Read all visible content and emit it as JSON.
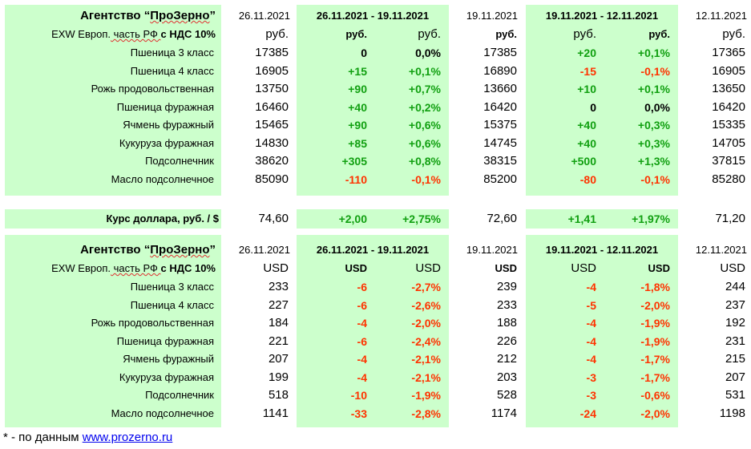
{
  "section_rub": {
    "brand_prefix": "Агентство “",
    "brand_name": "ПроЗерно",
    "brand_suffix": "”",
    "date_cur": "26.11.2021",
    "period1": "26.11.2021 - 19.11.2021",
    "date_mid": "19.11.2021",
    "period2": "19.11.2021 - 12.11.2021",
    "date_prev": "12.11.2021",
    "sub_label_a": "EXW Европ.",
    "sub_label_b": " часть РФ ",
    "sub_label_c": "с НДС 10%",
    "unit": "руб.",
    "unit_delta": "руб.",
    "unit_pct": "руб.",
    "unit_mid": "руб.",
    "unit_delta2": "руб.",
    "unit_pct2": "руб.",
    "unit_prev": "руб.",
    "rows": [
      {
        "name": "Пшеница 3 класс",
        "cur": "17385",
        "d1": "0",
        "p1": "0,0%",
        "mid": "17385",
        "d2": "+20",
        "p2": "+0,1%",
        "prev": "17365"
      },
      {
        "name": "Пшеница 4 класс",
        "cur": "16905",
        "d1": "+15",
        "p1": "+0,1%",
        "mid": "16890",
        "d2": "-15",
        "p2": "-0,1%",
        "prev": "16905"
      },
      {
        "name": "Рожь продовольственная",
        "cur": "13750",
        "d1": "+90",
        "p1": "+0,7%",
        "mid": "13660",
        "d2": "+10",
        "p2": "+0,1%",
        "prev": "13650"
      },
      {
        "name": "Пшеница фуражная",
        "cur": "16460",
        "d1": "+40",
        "p1": "+0,2%",
        "mid": "16420",
        "d2": "0",
        "p2": "0,0%",
        "prev": "16420"
      },
      {
        "name": "Ячмень фуражный",
        "cur": "15465",
        "d1": "+90",
        "p1": "+0,6%",
        "mid": "15375",
        "d2": "+40",
        "p2": "+0,3%",
        "prev": "15335"
      },
      {
        "name": "Кукуруза фуражная",
        "cur": "14830",
        "d1": "+85",
        "p1": "+0,6%",
        "mid": "14745",
        "d2": "+40",
        "p2": "+0,3%",
        "prev": "14705"
      },
      {
        "name": "Подсолнечник",
        "cur": "38620",
        "d1": "+305",
        "p1": "+0,8%",
        "mid": "38315",
        "d2": "+500",
        "p2": "+1,3%",
        "prev": "37815"
      },
      {
        "name": "Масло подсолнечное",
        "cur": "85090",
        "d1": "-110",
        "p1": "-0,1%",
        "mid": "85200",
        "d2": "-80",
        "p2": "-0,1%",
        "prev": "85280"
      }
    ]
  },
  "fx": {
    "label": "Курс доллара, руб. / $",
    "cur": "74,60",
    "d1": "+2,00",
    "p1": "+2,75%",
    "mid": "72,60",
    "d2": "+1,41",
    "p2": "+1,97%",
    "prev": "71,20"
  },
  "section_usd": {
    "brand_prefix": "Агентство “",
    "brand_name": "ПроЗерно",
    "brand_suffix": "”",
    "date_cur": "26.11.2021",
    "period1": "26.11.2021 - 19.11.2021",
    "date_mid": "19.11.2021",
    "period2": "19.11.2021 - 12.11.2021",
    "date_prev": "12.11.2021",
    "sub_label_a": "EXW Европ.",
    "sub_label_b": " часть РФ ",
    "sub_label_c": "с НДС 10%",
    "unit": "USD",
    "unit_delta": "USD",
    "unit_pct": "USD",
    "unit_mid": "USD",
    "unit_delta2": "USD",
    "unit_pct2": "USD",
    "unit_prev": "USD",
    "rows": [
      {
        "name": "Пшеница 3 класс",
        "cur": "233",
        "d1": "-6",
        "p1": "-2,7%",
        "mid": "239",
        "d2": "-4",
        "p2": "-1,8%",
        "prev": "244"
      },
      {
        "name": "Пшеница 4 класс",
        "cur": "227",
        "d1": "-6",
        "p1": "-2,6%",
        "mid": "233",
        "d2": "-5",
        "p2": "-2,0%",
        "prev": "237"
      },
      {
        "name": "Рожь продовольственная",
        "cur": "184",
        "d1": "-4",
        "p1": "-2,0%",
        "mid": "188",
        "d2": "-4",
        "p2": "-1,9%",
        "prev": "192"
      },
      {
        "name": "Пшеница фуражная",
        "cur": "221",
        "d1": "-6",
        "p1": "-2,4%",
        "mid": "226",
        "d2": "-4",
        "p2": "-1,9%",
        "prev": "231"
      },
      {
        "name": "Ячмень фуражный",
        "cur": "207",
        "d1": "-4",
        "p1": "-2,1%",
        "mid": "212",
        "d2": "-4",
        "p2": "-1,7%",
        "prev": "215"
      },
      {
        "name": "Кукуруза фуражная",
        "cur": "199",
        "d1": "-4",
        "p1": "-2,1%",
        "mid": "203",
        "d2": "-3",
        "p2": "-1,7%",
        "prev": "207"
      },
      {
        "name": "Подсолнечник",
        "cur": "518",
        "d1": "-10",
        "p1": "-1,9%",
        "mid": "528",
        "d2": "-3",
        "p2": "-0,6%",
        "prev": "531"
      },
      {
        "name": "Масло подсолнечное",
        "cur": "1141",
        "d1": "-33",
        "p1": "-2,8%",
        "mid": "1174",
        "d2": "-24",
        "p2": "-2,0%",
        "prev": "1198"
      }
    ]
  },
  "footer": {
    "text": "* - по данным ",
    "link": "www.prozerno.ru"
  }
}
